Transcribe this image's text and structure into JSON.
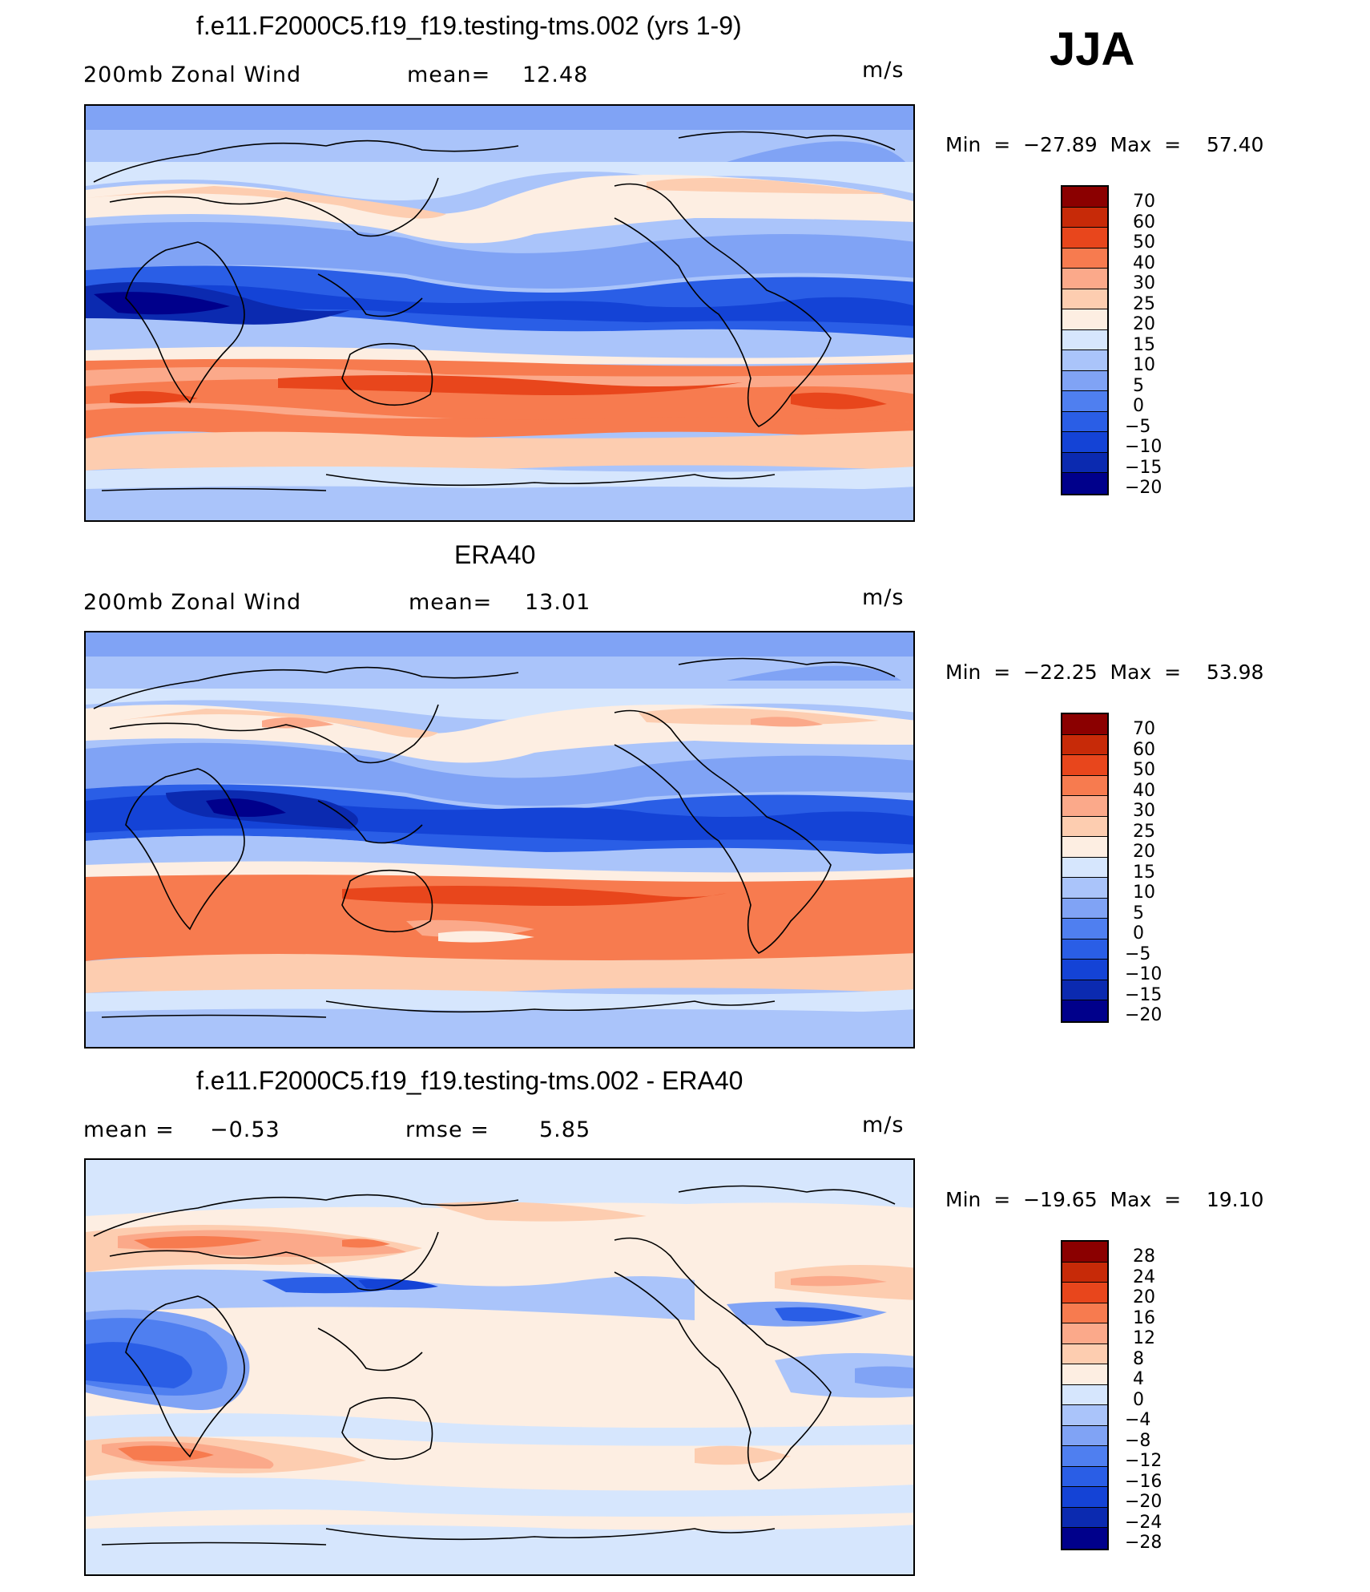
{
  "season": "JJA",
  "units": "m/s",
  "panels": [
    {
      "title": "f.e11.F2000C5.f19_f19.testing-tms.002 (yrs 1-9)",
      "left_label": "200mb Zonal Wind",
      "mid_label": "mean=",
      "mid_value": "12.48",
      "units": "m/s",
      "minmax": "Min  =  −27.89  Max  =    57.40",
      "colorbar_labels": [
        "70",
        "60",
        "50",
        "40",
        "30",
        "25",
        "20",
        "15",
        "10",
        "5",
        "0",
        "−5",
        "−10",
        "−15",
        "−20"
      ]
    },
    {
      "title": "ERA40",
      "left_label": "200mb Zonal Wind",
      "mid_label": "mean=",
      "mid_value": "13.01",
      "units": "m/s",
      "minmax": "Min  =  −22.25  Max  =    53.98",
      "colorbar_labels": [
        "70",
        "60",
        "50",
        "40",
        "30",
        "25",
        "20",
        "15",
        "10",
        "5",
        "0",
        "−5",
        "−10",
        "−15",
        "−20"
      ]
    },
    {
      "title": "f.e11.F2000C5.f19_f19.testing-tms.002 - ERA40",
      "left_label": "mean  =",
      "left_value": "−0.53",
      "mid_label": "rmse  =",
      "mid_value": "5.85",
      "units": "m/s",
      "minmax": "Min  =  −19.65  Max  =    19.10",
      "colorbar_labels": [
        "28",
        "24",
        "20",
        "16",
        "12",
        "8",
        "4",
        "0",
        "−4",
        "−8",
        "−12",
        "−16",
        "−20",
        "−24",
        "−28"
      ]
    }
  ],
  "chart_data": [
    {
      "type": "heatmap",
      "title": "f.e11.F2000C5.f19_f19.testing-tms.002 (yrs 1-9)",
      "variable": "200mb Zonal Wind",
      "units": "m/s",
      "mean": 12.48,
      "min": -27.89,
      "max": 57.4,
      "contour_levels": [
        -20,
        -15,
        -10,
        -5,
        0,
        5,
        10,
        15,
        20,
        25,
        30,
        40,
        50,
        60,
        70
      ],
      "colors": [
        "#00008b",
        "#0b2ab0",
        "#1443d6",
        "#2a5ee6",
        "#4f7ff0",
        "#80a3f5",
        "#aac4fa",
        "#d6e6fd",
        "#fdeee2",
        "#fdcdb0",
        "#fba98a",
        "#f77b4f",
        "#e8461c",
        "#c72a08",
        "#8b0000"
      ]
    },
    {
      "type": "heatmap",
      "title": "ERA40",
      "variable": "200mb Zonal Wind",
      "units": "m/s",
      "mean": 13.01,
      "min": -22.25,
      "max": 53.98,
      "contour_levels": [
        -20,
        -15,
        -10,
        -5,
        0,
        5,
        10,
        15,
        20,
        25,
        30,
        40,
        50,
        60,
        70
      ],
      "colors": [
        "#00008b",
        "#0b2ab0",
        "#1443d6",
        "#2a5ee6",
        "#4f7ff0",
        "#80a3f5",
        "#aac4fa",
        "#d6e6fd",
        "#fdeee2",
        "#fdcdb0",
        "#fba98a",
        "#f77b4f",
        "#e8461c",
        "#c72a08",
        "#8b0000"
      ]
    },
    {
      "type": "heatmap",
      "title": "f.e11.F2000C5.f19_f19.testing-tms.002 - ERA40",
      "units": "m/s",
      "mean": -0.53,
      "rmse": 5.85,
      "min": -19.65,
      "max": 19.1,
      "contour_levels": [
        -28,
        -24,
        -20,
        -16,
        -12,
        -8,
        -4,
        0,
        4,
        8,
        12,
        16,
        20,
        24,
        28
      ],
      "colors": [
        "#00008b",
        "#0b2ab0",
        "#1443d6",
        "#2a5ee6",
        "#4f7ff0",
        "#80a3f5",
        "#aac4fa",
        "#d6e6fd",
        "#fdeee2",
        "#fdcdb0",
        "#fba98a",
        "#f77b4f",
        "#e8461c",
        "#c72a08",
        "#8b0000"
      ]
    }
  ]
}
